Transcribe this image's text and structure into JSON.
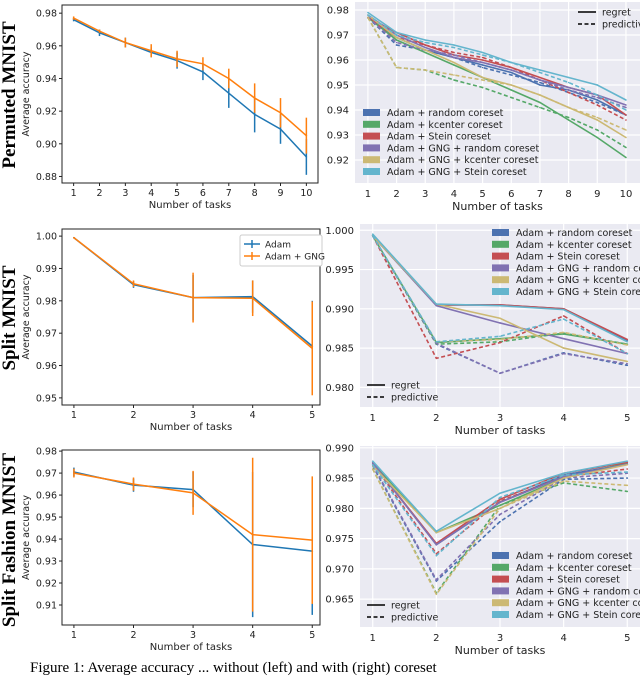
{
  "row_labels": [
    "Permuted MNIST",
    "Split MNIST",
    "Split Fashion MNIST"
  ],
  "caption": "Figure 1: Average accuracy ... without (left) and with (right) coreset",
  "colors": {
    "Adam": "#1f77b4",
    "Adam + GNG": "#ff7f0e",
    "Adam + random coreset": "#4c72b0",
    "Adam + kcenter coreset": "#55a868",
    "Adam + Stein coreset": "#c44e52",
    "Adam + GNG + random coreset": "#8172b2",
    "Adam + GNG + kcenter coreset": "#ccb974",
    "Adam + GNG + Stein coreset": "#64b5cd",
    "seaborn_bg": "#eaeaf2"
  },
  "chart_data": [
    {
      "type": "line",
      "style": "plain",
      "xlabel": "Number of tasks",
      "ylabel": "Average accuracy",
      "x": [
        1,
        2,
        3,
        4,
        5,
        6,
        7,
        8,
        9,
        10
      ],
      "xlim": [
        0.55,
        10.45
      ],
      "ylim": [
        0.876,
        0.985
      ],
      "yticks": [
        [
          "0.88",
          0.88
        ],
        [
          "0.90",
          0.9
        ],
        [
          "0.92",
          0.92
        ],
        [
          "0.94",
          0.94
        ],
        [
          "0.96",
          0.96
        ],
        [
          "0.98",
          0.98
        ]
      ],
      "legend": null,
      "series": [
        {
          "name": "Adam",
          "values": [
            0.976,
            0.968,
            0.962,
            0.956,
            0.951,
            0.944,
            0.931,
            0.918,
            0.909,
            0.892
          ],
          "errors": [
            0.001,
            0.002,
            0.003,
            0.003,
            0.005,
            0.005,
            0.009,
            0.011,
            0.009,
            0.011
          ]
        },
        {
          "name": "Adam + GNG",
          "values": [
            0.977,
            0.969,
            0.962,
            0.957,
            0.952,
            0.949,
            0.94,
            0.928,
            0.919,
            0.905
          ],
          "errors": [
            0.001,
            0.001,
            0.003,
            0.004,
            0.005,
            0.004,
            0.006,
            0.009,
            0.009,
            0.011
          ]
        }
      ]
    },
    {
      "type": "line",
      "style": "seaborn",
      "xlabel": "Number of tasks",
      "ylabel": "",
      "x": [
        1,
        2,
        3,
        4,
        5,
        6,
        7,
        8,
        9,
        10
      ],
      "xlim": [
        0.55,
        10.49
      ],
      "ylim": [
        0.9108,
        0.9832
      ],
      "yticks": [
        [
          "0.92",
          0.92
        ],
        [
          "0.93",
          0.93
        ],
        [
          "0.94",
          0.94
        ],
        [
          "0.95",
          0.95
        ],
        [
          "0.96",
          0.96
        ],
        [
          "0.97",
          0.97
        ],
        [
          "0.98",
          0.98
        ]
      ],
      "legend": {
        "colors": "bottom-left",
        "styles": "top-right"
      },
      "style_legend": [
        "regret",
        "predictive"
      ],
      "series": [
        {
          "name": "Adam + random coreset",
          "regret": [
            0.977,
            0.969,
            0.964,
            0.961,
            0.958,
            0.955,
            0.95,
            0.948,
            0.944,
            0.938
          ],
          "predictive": [
            0.977,
            0.966,
            0.964,
            0.961,
            0.957,
            0.954,
            0.951,
            0.947,
            0.943,
            0.938
          ]
        },
        {
          "name": "Adam + kcenter coreset",
          "regret": [
            0.977,
            0.968,
            0.963,
            0.958,
            0.953,
            0.948,
            0.943,
            0.936,
            0.929,
            0.921
          ],
          "predictive": [
            0.977,
            0.957,
            0.956,
            0.952,
            0.949,
            0.945,
            0.941,
            0.937,
            0.932,
            0.925
          ]
        },
        {
          "name": "Adam + Stein coreset",
          "regret": [
            0.977,
            0.971,
            0.966,
            0.962,
            0.96,
            0.957,
            0.953,
            0.949,
            0.946,
            0.938
          ],
          "predictive": [
            0.977,
            0.969,
            0.966,
            0.963,
            0.961,
            0.957,
            0.952,
            0.947,
            0.942,
            0.936
          ]
        },
        {
          "name": "Adam + GNG + random coreset",
          "regret": [
            0.978,
            0.97,
            0.965,
            0.961,
            0.959,
            0.956,
            0.952,
            0.949,
            0.946,
            0.942
          ],
          "predictive": [
            0.977,
            0.967,
            0.964,
            0.962,
            0.959,
            0.956,
            0.952,
            0.948,
            0.945,
            0.941
          ]
        },
        {
          "name": "Adam + GNG + kcenter coreset",
          "regret": [
            0.978,
            0.969,
            0.964,
            0.959,
            0.953,
            0.95,
            0.946,
            0.941,
            0.936,
            0.929
          ],
          "predictive": [
            0.977,
            0.957,
            0.956,
            0.954,
            0.952,
            0.95,
            0.946,
            0.941,
            0.937,
            0.932
          ]
        },
        {
          "name": "Adam + GNG + Stein coreset",
          "regret": [
            0.979,
            0.971,
            0.968,
            0.966,
            0.963,
            0.959,
            0.956,
            0.953,
            0.95,
            0.944
          ],
          "predictive": [
            0.978,
            0.97,
            0.967,
            0.965,
            0.962,
            0.959,
            0.955,
            0.951,
            0.946,
            0.94
          ]
        }
      ]
    },
    {
      "type": "line",
      "style": "plain",
      "xlabel": "Number of tasks",
      "ylabel": "Average accuracy",
      "x": [
        1,
        2,
        3,
        4,
        5
      ],
      "xlim": [
        0.8,
        5.13
      ],
      "ylim": [
        0.9478,
        1.0022
      ],
      "yticks": [
        [
          "0.95",
          0.95
        ],
        [
          "0.96",
          0.96
        ],
        [
          "0.97",
          0.97
        ],
        [
          "0.98",
          0.98
        ],
        [
          "0.99",
          0.99
        ],
        [
          "1.00",
          1.0
        ]
      ],
      "legend": {
        "colors": "top-right"
      },
      "series": [
        {
          "name": "Adam",
          "values": [
            0.9995,
            0.985,
            0.981,
            0.9813,
            0.966
          ],
          "errors": [
            0.0002,
            0.001,
            0.007,
            0.005,
            0.014
          ]
        },
        {
          "name": "Adam + GNG",
          "values": [
            0.9995,
            0.9853,
            0.981,
            0.9808,
            0.9653
          ],
          "errors": [
            0.0002,
            0.001,
            0.0077,
            0.0055,
            0.0145
          ]
        }
      ]
    },
    {
      "type": "line",
      "style": "seaborn",
      "xlabel": "Number of tasks",
      "ylabel": "",
      "x": [
        1,
        2,
        3,
        4,
        5
      ],
      "xlim": [
        0.8,
        5.2
      ],
      "ylim": [
        0.9775,
        1.0008
      ],
      "yticks": [
        [
          "0.980",
          0.98
        ],
        [
          "0.985",
          0.985
        ],
        [
          "0.990",
          0.99
        ],
        [
          "0.995",
          0.995
        ],
        [
          "1.000",
          1.0
        ]
      ],
      "legend": {
        "colors": "top-right",
        "styles": "bottom-left"
      },
      "style_legend": [
        "regret",
        "predictive"
      ],
      "series": [
        {
          "name": "Adam + random coreset",
          "regret": [
            0.9993,
            0.9905,
            0.9905,
            0.99,
            0.986
          ],
          "predictive": [
            0.9993,
            0.9855,
            0.9818,
            0.9844,
            0.9828
          ]
        },
        {
          "name": "Adam + kcenter coreset",
          "regret": [
            0.9993,
            0.9857,
            0.9862,
            0.9868,
            0.9855
          ],
          "predictive": [
            0.9993,
            0.9855,
            0.9858,
            0.9869,
            0.9855
          ]
        },
        {
          "name": "Adam + Stein coreset",
          "regret": [
            0.9993,
            0.9905,
            0.9905,
            0.99,
            0.9861
          ],
          "predictive": [
            0.9993,
            0.9837,
            0.9857,
            0.9891,
            0.9843
          ]
        },
        {
          "name": "Adam + GNG + random coreset",
          "regret": [
            0.9993,
            0.9904,
            0.9882,
            0.9862,
            0.9843
          ],
          "predictive": [
            0.9993,
            0.9856,
            0.9818,
            0.9843,
            0.983
          ]
        },
        {
          "name": "Adam + GNG + kcenter coreset",
          "regret": [
            0.9993,
            0.9906,
            0.9888,
            0.985,
            0.9833
          ],
          "predictive": [
            0.9993,
            0.9858,
            0.9861,
            0.987,
            0.9854
          ]
        },
        {
          "name": "Adam + GNG + Stein coreset",
          "regret": [
            0.9995,
            0.9906,
            0.9904,
            0.9899,
            0.9858
          ],
          "predictive": [
            0.9993,
            0.9858,
            0.9865,
            0.9887,
            0.9843
          ]
        }
      ]
    },
    {
      "type": "line",
      "style": "plain",
      "xlabel": "Number of tasks",
      "ylabel": "Average accuracy",
      "x": [
        1,
        2,
        3,
        4,
        5
      ],
      "xlim": [
        0.8,
        5.13
      ],
      "ylim": [
        0.9009,
        0.9805
      ],
      "yticks": [
        [
          "0.91",
          0.91
        ],
        [
          "0.92",
          0.92
        ],
        [
          "0.93",
          0.93
        ],
        [
          "0.94",
          0.94
        ],
        [
          "0.95",
          0.95
        ],
        [
          "0.96",
          0.96
        ],
        [
          "0.97",
          0.97
        ],
        [
          "0.98",
          0.98
        ]
      ],
      "legend": null,
      "series": [
        {
          "name": "Adam",
          "values": [
            0.9705,
            0.9645,
            0.9625,
            0.9375,
            0.9345
          ],
          "errors": [
            0.002,
            0.003,
            0.008,
            0.033,
            0.029
          ]
        },
        {
          "name": "Adam + GNG",
          "values": [
            0.97,
            0.965,
            0.961,
            0.942,
            0.9395
          ],
          "errors": [
            0.002,
            0.003,
            0.01,
            0.035,
            0.029
          ]
        }
      ]
    },
    {
      "type": "line",
      "style": "seaborn",
      "xlabel": "Number of tasks",
      "ylabel": "",
      "x": [
        1,
        2,
        3,
        4,
        5
      ],
      "xlim": [
        0.8,
        5.2
      ],
      "ylim": [
        0.9604,
        0.9903
      ],
      "yticks": [
        [
          "0.965",
          0.965
        ],
        [
          "0.970",
          0.97
        ],
        [
          "0.975",
          0.975
        ],
        [
          "0.980",
          0.98
        ],
        [
          "0.985",
          0.985
        ],
        [
          "0.990",
          0.99
        ]
      ],
      "legend": {
        "colors": "bottom-right",
        "styles": "bottom-left"
      },
      "style_legend": [
        "regret",
        "predictive"
      ],
      "series": [
        {
          "name": "Adam + random coreset",
          "regret": [
            0.9875,
            0.974,
            0.981,
            0.9855,
            0.9873
          ],
          "predictive": [
            0.987,
            0.968,
            0.9778,
            0.9848,
            0.985
          ]
        },
        {
          "name": "Adam + kcenter coreset",
          "regret": [
            0.9875,
            0.976,
            0.9805,
            0.985,
            0.9875
          ],
          "predictive": [
            0.9865,
            0.966,
            0.9805,
            0.9842,
            0.9828
          ]
        },
        {
          "name": "Adam + Stein coreset",
          "regret": [
            0.9875,
            0.9742,
            0.9815,
            0.9858,
            0.9876
          ],
          "predictive": [
            0.9875,
            0.9725,
            0.9812,
            0.9852,
            0.9865
          ]
        },
        {
          "name": "Adam + GNG + random coreset",
          "regret": [
            0.9875,
            0.974,
            0.981,
            0.9852,
            0.9873
          ],
          "predictive": [
            0.9872,
            0.9682,
            0.979,
            0.985,
            0.9858
          ]
        },
        {
          "name": "Adam + GNG + kcenter coreset",
          "regret": [
            0.987,
            0.976,
            0.98,
            0.985,
            0.9872
          ],
          "predictive": [
            0.9865,
            0.9658,
            0.98,
            0.9845,
            0.9838
          ]
        },
        {
          "name": "Adam + GNG + Stein coreset",
          "regret": [
            0.9878,
            0.9762,
            0.9825,
            0.9858,
            0.9878
          ],
          "predictive": [
            0.9872,
            0.9722,
            0.9818,
            0.9855,
            0.986
          ]
        }
      ]
    }
  ]
}
